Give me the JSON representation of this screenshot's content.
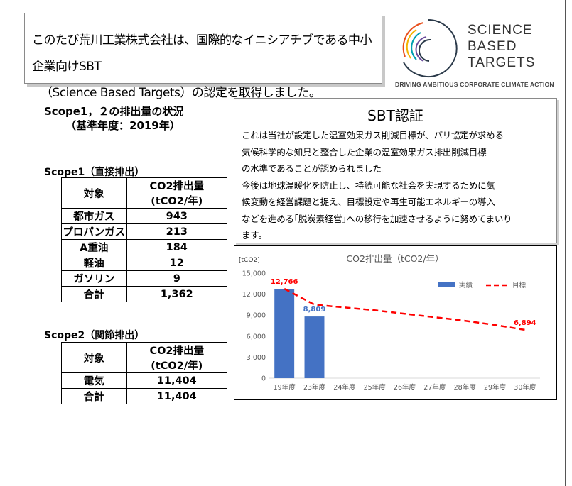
{
  "headline": {
    "line1": "このたび荒川工業株式会社は、国際的なイニシアチブである中小企業向けSBT",
    "line2": "（Science Based Targets）の認定を取得しました。"
  },
  "logo": {
    "words": [
      "SCIENCE",
      "BASED",
      "TARGETS"
    ],
    "tagline": "DRIVING AMBITIOUS CORPORATE CLIMATE ACTION"
  },
  "status": {
    "title_line1": "Scope1，２の排出量の状況",
    "title_line2": "（基準年度：2019年）"
  },
  "scope1": {
    "title": "Scope1（直接排出）",
    "header_col1": "対象",
    "header_col2_line1": "CO2排出量",
    "header_col2_line2": "(tCO2/年)",
    "rows": [
      {
        "label": "都市ガス",
        "value": "943"
      },
      {
        "label": "プロパンガス",
        "value": "213"
      },
      {
        "label": "A重油",
        "value": "184"
      },
      {
        "label": "軽油",
        "value": "12"
      },
      {
        "label": "ガソリン",
        "value": "9"
      },
      {
        "label": "合計",
        "value": "1,362"
      }
    ]
  },
  "scope2": {
    "title": "Scope2（関節排出）",
    "header_col1": "対象",
    "header_col2_line1": "CO2排出量",
    "header_col2_line2": "(tCO2/年)",
    "rows": [
      {
        "label": "電気",
        "value": "11,404"
      },
      {
        "label": "合計",
        "value": "11,404"
      }
    ]
  },
  "sbt": {
    "title": "SBT認証",
    "lines": [
      "これは当社が設定した温室効果ガス削減目標が、パリ協定が求める",
      "気候科学的な知見と整合した企業の温室効果ガス排出削減目標",
      "の水準であることが認められました。",
      "今後は地球温暖化を防止し、持続可能な社会を実現するために気",
      "候変動を経営課題と捉え、目標設定や再生可能エネルギーの導入",
      "などを進める｢脱炭素経営｣への移行を加速させるように努めてまいり",
      "ます。"
    ]
  },
  "chart_data": {
    "type": "bar",
    "title": "CO2排出量（tCO2/年）",
    "unit_label": "[tCO2]",
    "categories": [
      "19年度",
      "23年度",
      "24年度",
      "25年度",
      "26年度",
      "27年度",
      "28年度",
      "29年度",
      "30年度"
    ],
    "ylim": [
      0,
      15000
    ],
    "yticks": [
      0,
      3000,
      6000,
      9000,
      12000,
      15000
    ],
    "ytick_labels": [
      "0",
      "3,000",
      "6,000",
      "9,000",
      "12,000",
      "15,000"
    ],
    "series": [
      {
        "name": "実績",
        "type": "bar",
        "color": "#4472C4",
        "values": [
          12766,
          8809,
          null,
          null,
          null,
          null,
          null,
          null,
          null
        ]
      },
      {
        "name": "目標",
        "type": "line",
        "color": "#FF0000",
        "style": "dashed",
        "values": [
          12766,
          10500,
          10100,
          9700,
          9200,
          8700,
          8200,
          7600,
          6894
        ]
      }
    ],
    "data_labels": [
      {
        "series": "目標",
        "index": 0,
        "text": "12,766",
        "color": "#FF0000"
      },
      {
        "series": "実績",
        "index": 1,
        "text": "8,809",
        "color": "#4472C4"
      },
      {
        "series": "目標",
        "index": 8,
        "text": "6,894",
        "color": "#FF0000"
      }
    ],
    "legend_position": "top-right",
    "grid": false
  }
}
